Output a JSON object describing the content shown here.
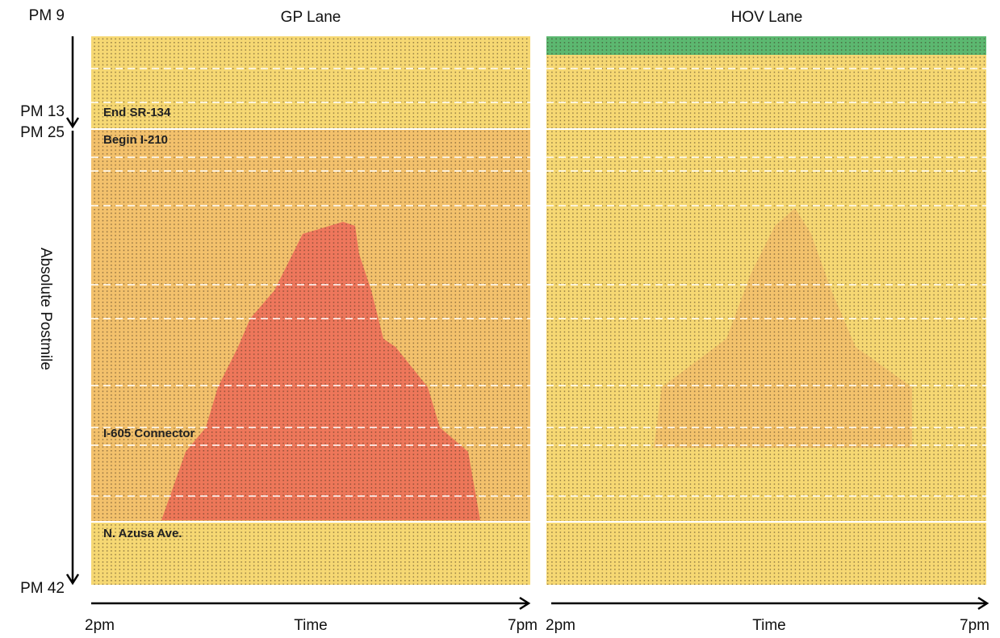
{
  "panels": [
    {
      "title": "GP Lane",
      "x_start": "2pm",
      "x_label": "Time",
      "x_end": "7pm",
      "annotations": [
        "End SR-134",
        "Begin I-210",
        "I-605 Connector",
        "N. Azusa Ave."
      ]
    },
    {
      "title": "HOV Lane",
      "x_start": "2pm",
      "x_label": "Time",
      "x_end": "7pm"
    }
  ],
  "y_axis": {
    "label": "Absolute Postmile",
    "ticks": [
      "PM 9",
      "PM 13",
      "PM 25",
      "PM 42"
    ]
  }
}
